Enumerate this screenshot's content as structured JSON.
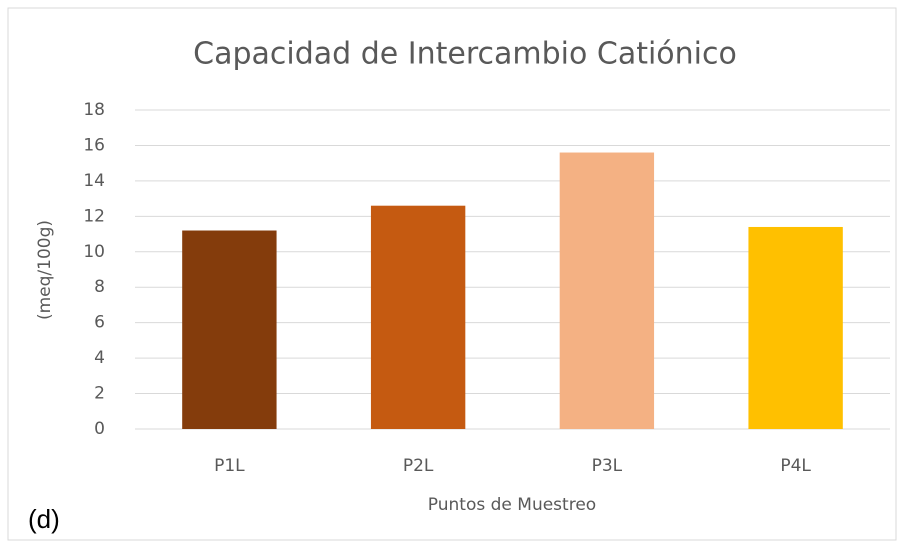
{
  "chart_data": {
    "type": "bar",
    "title": "Capacidad de Intercambio Catiónico",
    "x_label": "Puntos de Muestreo",
    "y_label": "(meq/100g)",
    "annotation": "(d)",
    "categories": [
      "P1L",
      "P2L",
      "P3L",
      "P4L"
    ],
    "values": [
      11.2,
      12.6,
      15.6,
      11.4
    ],
    "colors": [
      "#843c0c",
      "#c55a11",
      "#f4b183",
      "#ffc000"
    ],
    "ylim": [
      0,
      18
    ],
    "yticks": [
      0,
      2,
      4,
      6,
      8,
      10,
      12,
      14,
      16,
      18
    ],
    "grid": true
  }
}
